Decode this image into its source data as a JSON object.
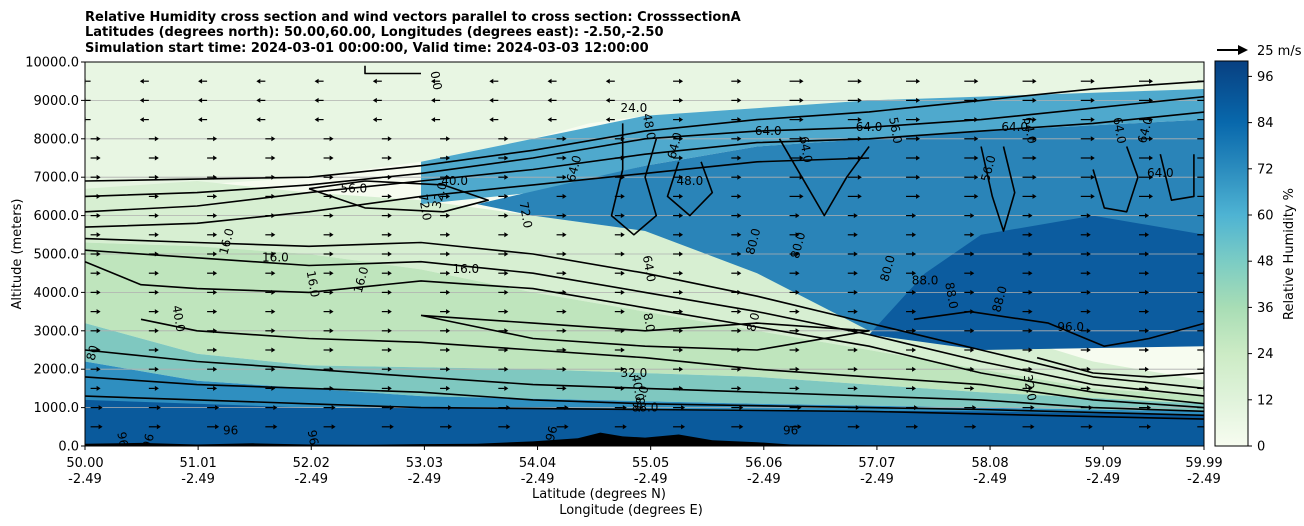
{
  "chart_data": {
    "type": "heatmap",
    "title_lines": [
      "Relative Humidity cross section and wind vectors parallel to cross section: CrosssectionA",
      "Latitudes (degrees north): 50.00,60.00, Longitudes (degrees east): -2.50,-2.50",
      "Simulation start time: 2024-03-01 00:00:00, Valid time: 2024-03-03 12:00:00"
    ],
    "ylabel": "Altitude (meters)",
    "xlabel_lines": [
      "Latitude (degrees N)",
      "Longitude (degrees E)"
    ],
    "ylim": [
      0,
      10000
    ],
    "yticks": [
      0,
      1000,
      2000,
      3000,
      4000,
      5000,
      6000,
      7000,
      8000,
      9000,
      10000
    ],
    "ytick_labels": [
      "0.0",
      "1000.0",
      "2000.0",
      "3000.0",
      "4000.0",
      "5000.0",
      "6000.0",
      "7000.0",
      "8000.0",
      "9000.0",
      "10000.0"
    ],
    "xlim": [
      50.0,
      59.99
    ],
    "xticks": [
      {
        "lat": "50.00",
        "lon": "-2.49"
      },
      {
        "lat": "51.01",
        "lon": "-2.49"
      },
      {
        "lat": "52.02",
        "lon": "-2.49"
      },
      {
        "lat": "53.03",
        "lon": "-2.49"
      },
      {
        "lat": "54.04",
        "lon": "-2.49"
      },
      {
        "lat": "55.05",
        "lon": "-2.49"
      },
      {
        "lat": "56.06",
        "lon": "-2.49"
      },
      {
        "lat": "57.07",
        "lon": "-2.49"
      },
      {
        "lat": "58.08",
        "lon": "-2.49"
      },
      {
        "lat": "59.09",
        "lon": "-2.49"
      },
      {
        "lat": "59.99",
        "lon": "-2.49"
      }
    ],
    "grid": "horizontal",
    "colorbar": {
      "label": "Relative Humidity %",
      "min": 0,
      "max": 100,
      "ticks": [
        0,
        12,
        24,
        36,
        48,
        60,
        72,
        84,
        96
      ],
      "colormap": "GnBu"
    },
    "quiver_key": {
      "label": "25 m/s",
      "speed": 25
    },
    "contour_labels": [
      {
        "text": "0.0",
        "lat": 53.1,
        "alt": 9500
      },
      {
        "text": "16.0",
        "lat": 51.3,
        "alt": 5300
      },
      {
        "text": "16.0",
        "lat": 51.7,
        "alt": 4800
      },
      {
        "text": "16.0",
        "lat": 52.0,
        "alt": 4200
      },
      {
        "text": "16.0",
        "lat": 52.5,
        "alt": 4300
      },
      {
        "text": "16.0",
        "lat": 53.4,
        "alt": 4500
      },
      {
        "text": "40.0",
        "lat": 50.8,
        "alt": 3300
      },
      {
        "text": "80",
        "lat": 50.1,
        "alt": 2400
      },
      {
        "text": "56.0",
        "lat": 52.4,
        "alt": 6600
      },
      {
        "text": "72.0",
        "lat": 53.0,
        "alt": 6200
      },
      {
        "text": "32.0",
        "lat": 53.2,
        "alt": 6500
      },
      {
        "text": "40.0",
        "lat": 53.3,
        "alt": 6800
      },
      {
        "text": "72.0",
        "lat": 53.9,
        "alt": 6000
      },
      {
        "text": "64.0",
        "lat": 54.4,
        "alt": 7200
      },
      {
        "text": "24.0",
        "lat": 54.9,
        "alt": 8700
      },
      {
        "text": "48.0",
        "lat": 55.0,
        "alt": 8300
      },
      {
        "text": "64.0",
        "lat": 55.3,
        "alt": 7800
      },
      {
        "text": "48.0",
        "lat": 55.4,
        "alt": 6800
      },
      {
        "text": "64.0",
        "lat": 55.0,
        "alt": 4600
      },
      {
        "text": "80.0",
        "lat": 56.0,
        "alt": 5300
      },
      {
        "text": "64.0",
        "lat": 56.1,
        "alt": 8100
      },
      {
        "text": "64.0",
        "lat": 56.4,
        "alt": 7700
      },
      {
        "text": "80.0",
        "lat": 56.4,
        "alt": 5200
      },
      {
        "text": "64.0",
        "lat": 57.0,
        "alt": 8200
      },
      {
        "text": "56.0",
        "lat": 57.2,
        "alt": 8200
      },
      {
        "text": "80.0",
        "lat": 57.2,
        "alt": 4600
      },
      {
        "text": "88.0",
        "lat": 57.5,
        "alt": 4200
      },
      {
        "text": "88.0",
        "lat": 57.7,
        "alt": 3900
      },
      {
        "text": "56.0",
        "lat": 58.1,
        "alt": 7200
      },
      {
        "text": "64.0",
        "lat": 58.3,
        "alt": 8200
      },
      {
        "text": "64.0",
        "lat": 58.4,
        "alt": 8200
      },
      {
        "text": "88.0",
        "lat": 58.2,
        "alt": 3800
      },
      {
        "text": "96.0",
        "lat": 58.8,
        "alt": 3000
      },
      {
        "text": "64.0",
        "lat": 59.2,
        "alt": 8200
      },
      {
        "text": "64.0",
        "lat": 59.5,
        "alt": 8200
      },
      {
        "text": "64.0",
        "lat": 59.6,
        "alt": 7000
      },
      {
        "text": "8.0",
        "lat": 55.0,
        "alt": 3200
      },
      {
        "text": "8.0",
        "lat": 56.0,
        "alt": 3200
      },
      {
        "text": "32.0",
        "lat": 54.9,
        "alt": 1800
      },
      {
        "text": "40.0",
        "lat": 54.9,
        "alt": 1500
      },
      {
        "text": "48.0",
        "lat": 55.0,
        "alt": 1200
      },
      {
        "text": "88.0",
        "lat": 55.0,
        "alt": 900
      },
      {
        "text": "96",
        "lat": 50.3,
        "alt": 150
      },
      {
        "text": "96",
        "lat": 50.6,
        "alt": 100
      },
      {
        "text": "96",
        "lat": 51.3,
        "alt": 300
      },
      {
        "text": "96",
        "lat": 52.0,
        "alt": 200
      },
      {
        "text": "96",
        "lat": 54.2,
        "alt": 300
      },
      {
        "text": "96",
        "lat": 56.3,
        "alt": 300
      },
      {
        "text": "32.0",
        "lat": 58.4,
        "alt": 1500
      }
    ]
  }
}
